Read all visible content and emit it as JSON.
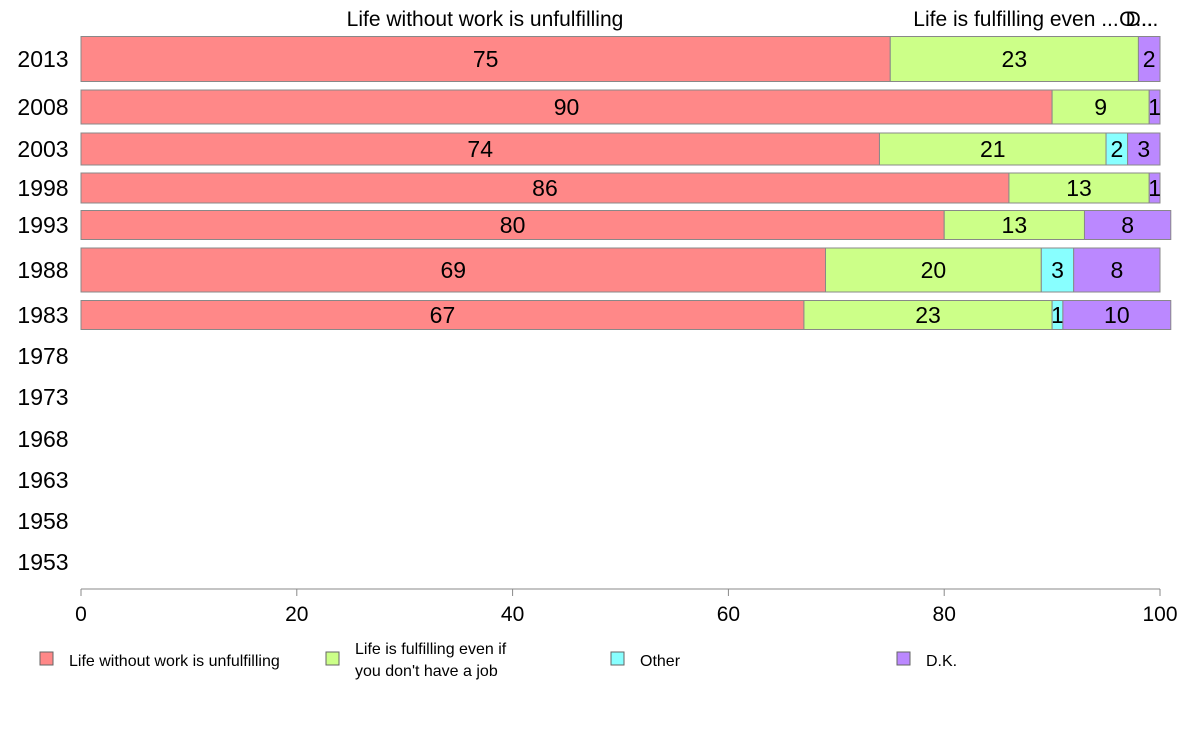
{
  "chart_data": {
    "type": "bar",
    "orientation": "horizontal",
    "stacked": true,
    "categories": [
      "2013",
      "2008",
      "2003",
      "1998",
      "1993",
      "1988",
      "1983",
      "1978",
      "1973",
      "1968",
      "1963",
      "1958",
      "1953"
    ],
    "series": [
      {
        "name": "Life without work is unfulfilling",
        "color": "#ff8888",
        "values": [
          75,
          90,
          74,
          86,
          80,
          69,
          67,
          null,
          null,
          null,
          null,
          null,
          null
        ]
      },
      {
        "name": "Life is fulfilling even if you don't have a job",
        "color": "#ccff88",
        "values": [
          23,
          9,
          21,
          13,
          13,
          20,
          23,
          null,
          null,
          null,
          null,
          null,
          null
        ]
      },
      {
        "name": "Other",
        "color": "#88ffff",
        "values": [
          0,
          0,
          2,
          0,
          0,
          3,
          1,
          null,
          null,
          null,
          null,
          null,
          null
        ]
      },
      {
        "name": "D.K.",
        "color": "#bb88ff",
        "values": [
          2,
          1,
          3,
          1,
          8,
          8,
          10,
          null,
          null,
          null,
          null,
          null,
          null
        ]
      }
    ],
    "top_labels": [
      "Life without work is unfulfilling",
      "Life is fulfilling even ...",
      "O...",
      "D..."
    ],
    "legend": [
      {
        "text": "Life without work is unfulfilling",
        "color": "#ff8888"
      },
      {
        "text": [
          "Life is fulfilling even if",
          "you don't have a job"
        ],
        "color": "#ccff88"
      },
      {
        "text": "Other",
        "color": "#88ffff"
      },
      {
        "text": "D.K.",
        "color": "#bb88ff"
      }
    ],
    "x_ticks": [
      "0",
      "20",
      "40",
      "60",
      "80",
      "100"
    ],
    "xlim": [
      0,
      100
    ],
    "grid": false,
    "legend_position": "bottom"
  }
}
